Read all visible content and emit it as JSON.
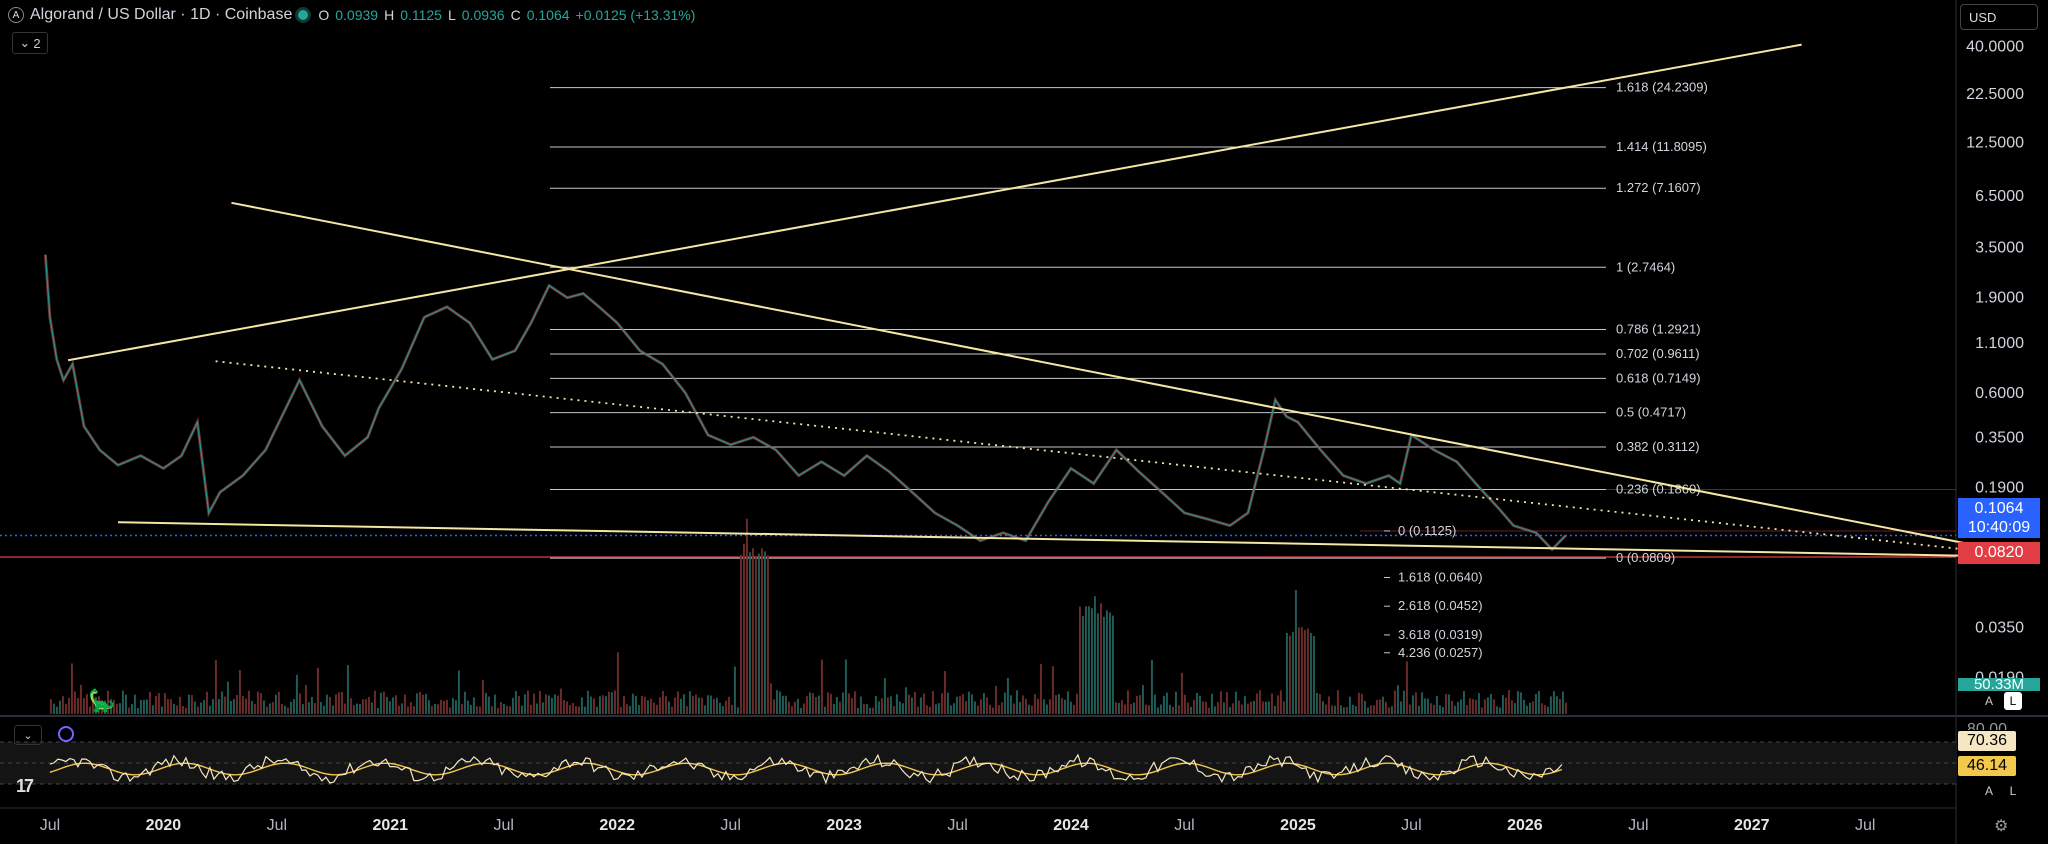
{
  "header": {
    "title": "Algorand / US Dollar · 1D · Coinbase",
    "ohlc": [
      {
        "k": "O",
        "v": "0.0939"
      },
      {
        "k": "H",
        "v": "0.1125"
      },
      {
        "k": "L",
        "v": "0.0936"
      },
      {
        "k": "C",
        "v": "0.1064"
      }
    ],
    "change": "+0.0125 (+13.31%)",
    "indicator_count": "2",
    "currency": "USD"
  },
  "price_tags": {
    "last_price": "0.1064",
    "countdown": "10:40:09",
    "low_line": "0.0820",
    "volume": "50.33M"
  },
  "rsi_tags": {
    "rsi": "70.36",
    "rsi_ma": "46.14",
    "level": "80.00"
  },
  "scale_buttons": {
    "auto": "A",
    "log": "L"
  },
  "colors": {
    "background": "#000000",
    "trendline": "#f5e6a3",
    "fib": "#c8c8c8",
    "up": "#26a69a",
    "down": "#ef5350",
    "last_price": "#2962ff",
    "low_line": "#e23c45",
    "rsi_tag": "#f4e7c2",
    "rsi_ma_tag": "#f2c94c"
  },
  "chart_data": {
    "type": "line",
    "title": "Algorand / US Dollar · 1D · Coinbase",
    "scale": "log",
    "grid": false,
    "y_axis_ticks": [
      40,
      22.5,
      12.5,
      6.5,
      3.5,
      1.9,
      1.1,
      0.6,
      0.35,
      0.19,
      0.035,
      0.019
    ],
    "y_axis_labels": [
      "40.0000",
      "22.5000",
      "12.5000",
      "6.5000",
      "3.5000",
      "1.9000",
      "1.1000",
      "0.6000",
      "0.3500",
      "0.1900",
      "0.0350",
      "0.0190"
    ],
    "ylim": [
      0.0145,
      55
    ],
    "xlim": [
      2019.28,
      2027.9
    ],
    "x_axis_ticks": [
      {
        "t": 2019.5,
        "label": "Jul",
        "year": false
      },
      {
        "t": 2020.0,
        "label": "2020",
        "year": true
      },
      {
        "t": 2020.5,
        "label": "Jul",
        "year": false
      },
      {
        "t": 2021.0,
        "label": "2021",
        "year": true
      },
      {
        "t": 2021.5,
        "label": "Jul",
        "year": false
      },
      {
        "t": 2022.0,
        "label": "2022",
        "year": true
      },
      {
        "t": 2022.5,
        "label": "Jul",
        "year": false
      },
      {
        "t": 2023.0,
        "label": "2023",
        "year": true
      },
      {
        "t": 2023.5,
        "label": "Jul",
        "year": false
      },
      {
        "t": 2024.0,
        "label": "2024",
        "year": true
      },
      {
        "t": 2024.5,
        "label": "Jul",
        "year": false
      },
      {
        "t": 2025.0,
        "label": "2025",
        "year": true
      },
      {
        "t": 2025.5,
        "label": "Jul",
        "year": false
      },
      {
        "t": 2026.0,
        "label": "2026",
        "year": true
      },
      {
        "t": 2026.5,
        "label": "Jul",
        "year": false
      },
      {
        "t": 2027.0,
        "label": "2027",
        "year": true
      },
      {
        "t": 2027.5,
        "label": "Jul",
        "year": false
      }
    ],
    "series": [
      {
        "values": [
          [
            2019.48,
            3.2
          ],
          [
            2019.5,
            1.5
          ],
          [
            2019.53,
            0.9
          ],
          [
            2019.56,
            0.7
          ],
          [
            2019.6,
            0.85
          ],
          [
            2019.65,
            0.4
          ],
          [
            2019.72,
            0.3
          ],
          [
            2019.8,
            0.25
          ],
          [
            2019.9,
            0.28
          ],
          [
            2020.0,
            0.24
          ],
          [
            2020.08,
            0.28
          ],
          [
            2020.15,
            0.42
          ],
          [
            2020.2,
            0.14
          ],
          [
            2020.25,
            0.18
          ],
          [
            2020.35,
            0.22
          ],
          [
            2020.45,
            0.3
          ],
          [
            2020.6,
            0.7
          ],
          [
            2020.7,
            0.4
          ],
          [
            2020.8,
            0.28
          ],
          [
            2020.9,
            0.35
          ],
          [
            2020.95,
            0.5
          ],
          [
            2021.05,
            0.8
          ],
          [
            2021.15,
            1.5
          ],
          [
            2021.25,
            1.7
          ],
          [
            2021.35,
            1.4
          ],
          [
            2021.45,
            0.9
          ],
          [
            2021.55,
            1.0
          ],
          [
            2021.62,
            1.4
          ],
          [
            2021.7,
            2.2
          ],
          [
            2021.78,
            1.9
          ],
          [
            2021.85,
            2.0
          ],
          [
            2021.92,
            1.7
          ],
          [
            2022.0,
            1.4
          ],
          [
            2022.1,
            1.0
          ],
          [
            2022.2,
            0.85
          ],
          [
            2022.3,
            0.6
          ],
          [
            2022.4,
            0.36
          ],
          [
            2022.5,
            0.32
          ],
          [
            2022.6,
            0.35
          ],
          [
            2022.7,
            0.3
          ],
          [
            2022.8,
            0.22
          ],
          [
            2022.9,
            0.26
          ],
          [
            2023.0,
            0.22
          ],
          [
            2023.1,
            0.28
          ],
          [
            2023.2,
            0.23
          ],
          [
            2023.3,
            0.18
          ],
          [
            2023.4,
            0.14
          ],
          [
            2023.5,
            0.12
          ],
          [
            2023.6,
            0.1
          ],
          [
            2023.7,
            0.11
          ],
          [
            2023.8,
            0.1
          ],
          [
            2023.9,
            0.16
          ],
          [
            2024.0,
            0.24
          ],
          [
            2024.1,
            0.2
          ],
          [
            2024.2,
            0.3
          ],
          [
            2024.3,
            0.23
          ],
          [
            2024.4,
            0.18
          ],
          [
            2024.5,
            0.14
          ],
          [
            2024.6,
            0.13
          ],
          [
            2024.7,
            0.12
          ],
          [
            2024.78,
            0.14
          ],
          [
            2024.85,
            0.3
          ],
          [
            2024.9,
            0.55
          ],
          [
            2024.95,
            0.45
          ],
          [
            2025.0,
            0.42
          ],
          [
            2025.1,
            0.3
          ],
          [
            2025.2,
            0.22
          ],
          [
            2025.3,
            0.2
          ],
          [
            2025.4,
            0.22
          ],
          [
            2025.45,
            0.2
          ],
          [
            2025.5,
            0.36
          ],
          [
            2025.6,
            0.3
          ],
          [
            2025.7,
            0.26
          ],
          [
            2025.8,
            0.19
          ],
          [
            2025.88,
            0.15
          ],
          [
            2025.95,
            0.12
          ],
          [
            2026.05,
            0.11
          ],
          [
            2026.12,
            0.09
          ],
          [
            2026.18,
            0.1064
          ]
        ]
      }
    ],
    "trendlines": [
      {
        "style": "solid",
        "points": [
          [
            2019.58,
            0.89
          ],
          [
            2027.22,
            40.8
          ]
        ]
      },
      {
        "style": "solid",
        "points": [
          [
            2020.3,
            6.0
          ],
          [
            2028.25,
            0.082
          ]
        ]
      },
      {
        "style": "solid",
        "points": [
          [
            2019.8,
            0.125
          ],
          [
            2028.25,
            0.082
          ]
        ]
      },
      {
        "style": "dotted",
        "points": [
          [
            2020.23,
            0.88
          ],
          [
            2028.25,
            0.082
          ]
        ]
      }
    ],
    "fib_levels": [
      {
        "ratio": "1.618",
        "price": 24.2309,
        "label": "1.618 (24.2309)"
      },
      {
        "ratio": "1.414",
        "price": 11.8095,
        "label": "1.414 (11.8095)"
      },
      {
        "ratio": "1.272",
        "price": 7.1607,
        "label": "1.272 (7.1607)"
      },
      {
        "ratio": "1",
        "price": 2.7464,
        "label": "1 (2.7464)"
      },
      {
        "ratio": "0.786",
        "price": 1.2921,
        "label": "0.786 (1.2921)"
      },
      {
        "ratio": "0.702",
        "price": 0.9611,
        "label": "0.702 (0.9611)"
      },
      {
        "ratio": "0.618",
        "price": 0.7149,
        "label": "0.618 (0.7149)"
      },
      {
        "ratio": "0.5",
        "price": 0.4717,
        "label": "0.5 (0.4717)"
      },
      {
        "ratio": "0.382",
        "price": 0.3112,
        "label": "0.382 (0.3112)"
      },
      {
        "ratio": "0.236",
        "price": 0.186,
        "label": "0.236 (0.1860)"
      },
      {
        "ratio": "0",
        "price": 0.0809,
        "label": "0 (0.0809)"
      }
    ],
    "fib_extension": [
      {
        "price": 0.1125,
        "label": "0 (0.1125)"
      },
      {
        "price": 0.064,
        "label": "1.618 (0.0640)"
      },
      {
        "price": 0.0452,
        "label": "2.618 (0.0452)"
      },
      {
        "price": 0.0319,
        "label": "3.618 (0.0319)"
      },
      {
        "price": 0.0257,
        "label": "4.236 (0.0257)"
      }
    ],
    "horizontal_lines": [
      {
        "price": 0.1064,
        "kind": "last-price"
      },
      {
        "price": 0.082,
        "kind": "support"
      }
    ]
  }
}
